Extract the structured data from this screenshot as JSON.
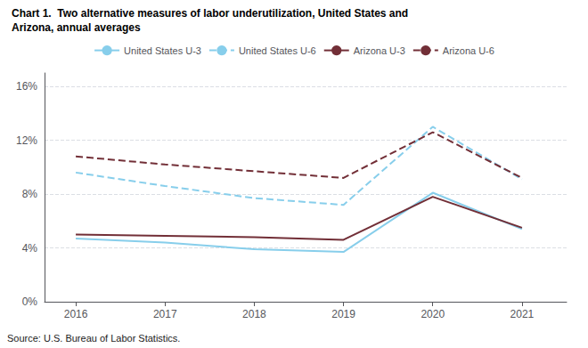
{
  "chart_data": {
    "type": "line",
    "title": "Chart 1.  Two alternative measures of labor underutilization, United States and",
    "subtitle": "Arizona, annual averages",
    "annotations": [
      "Source: U.S. Bureau of Labor Statistics."
    ],
    "x": [
      2016,
      2017,
      2018,
      2019,
      2020,
      2021
    ],
    "xlim": [
      2015.65,
      2021.5
    ],
    "xticks": [
      2016,
      2017,
      2018,
      2019,
      2020,
      2021
    ],
    "ylim": [
      0,
      17
    ],
    "yticks": [
      {
        "value": 0,
        "label": "0%"
      },
      {
        "value": 4,
        "label": "4%"
      },
      {
        "value": 8,
        "label": "8%"
      },
      {
        "value": 12,
        "label": "12%"
      },
      {
        "value": 16,
        "label": "16%"
      }
    ],
    "grid": true,
    "legend": "top",
    "series": [
      {
        "name": "United States U-3",
        "color": "#87CEEB",
        "line_style": "solid",
        "values": [
          4.7,
          4.4,
          3.9,
          3.7,
          8.1,
          5.4
        ]
      },
      {
        "name": "United States U-6",
        "color": "#87CEEB",
        "line_style": "dashed",
        "values": [
          9.6,
          8.6,
          7.7,
          7.2,
          13.0,
          9.1
        ]
      },
      {
        "name": "Arizona U-3",
        "color": "#722F37",
        "line_style": "solid",
        "values": [
          5.0,
          4.9,
          4.8,
          4.6,
          7.8,
          5.5
        ]
      },
      {
        "name": "Arizona U-6",
        "color": "#722F37",
        "line_style": "dashed",
        "values": [
          10.8,
          10.2,
          9.7,
          9.2,
          12.6,
          9.2
        ]
      }
    ]
  }
}
